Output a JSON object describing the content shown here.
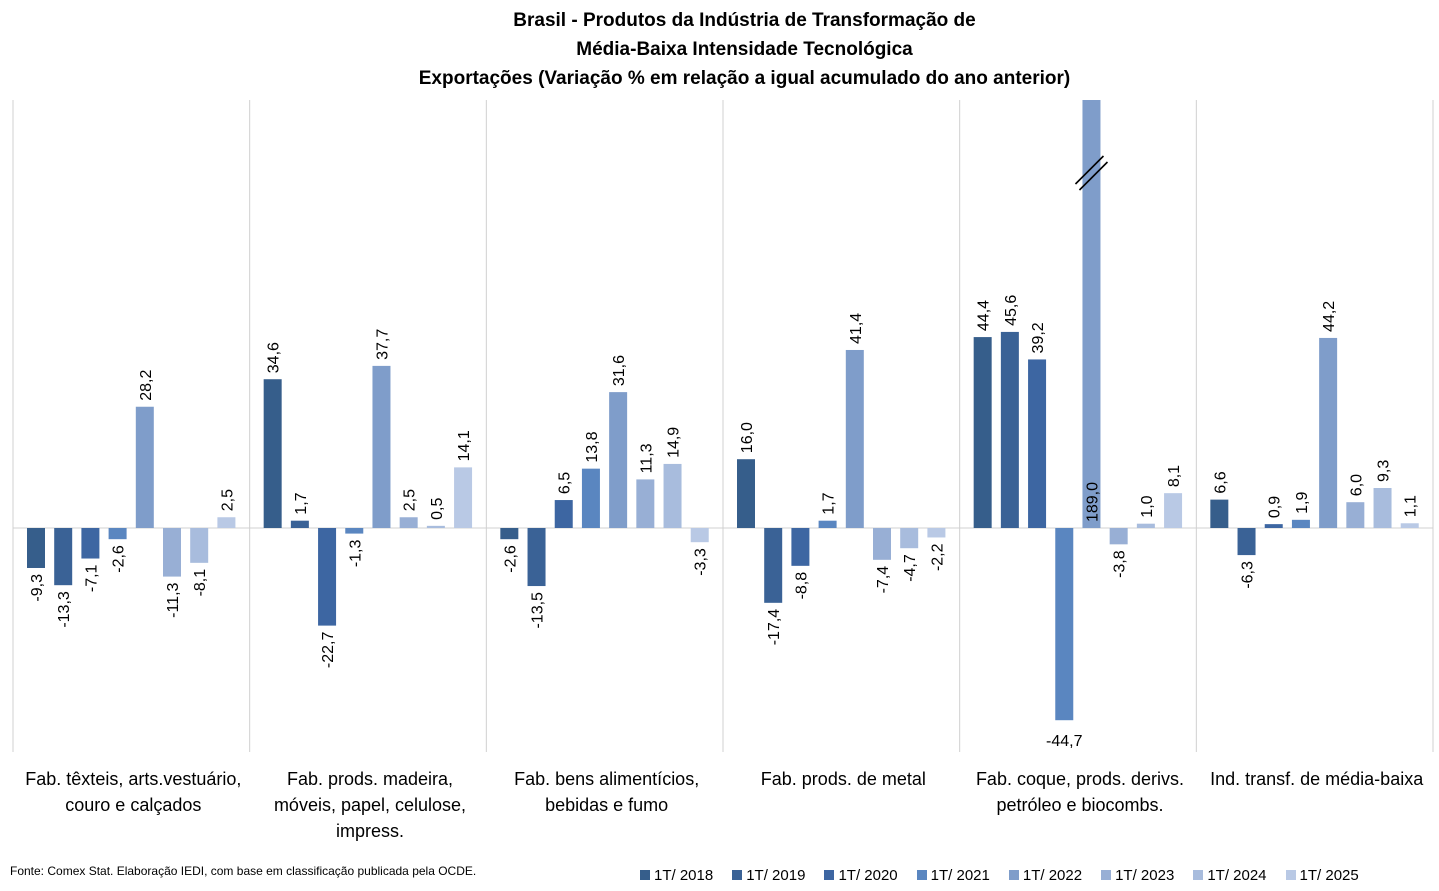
{
  "chart_data": {
    "type": "bar",
    "title": [
      "Brasil - Produtos da Indústria de Transformação de",
      "Média-Baixa Intensidade Tecnológica",
      "Exportações (Variação % em relação a igual acumulado do ano anterior)"
    ],
    "categories": [
      [
        "Fab. têxteis, arts.vestuário,",
        "couro e calçados"
      ],
      [
        "Fab. prods. madeira,",
        "móveis, papel, celulose,",
        "impress."
      ],
      [
        "Fab. bens alimentícios,",
        "bebidas e fumo"
      ],
      [
        "Fab. prods. de metal"
      ],
      [
        "Fab. coque, prods. derivs.",
        "petróleo e biocombs."
      ],
      [
        "Ind. transf. de média-baixa"
      ]
    ],
    "series": [
      {
        "name": "1T/ 2018",
        "color": "#365E8B",
        "values": [
          -9.3,
          34.6,
          -2.6,
          16.0,
          44.4,
          6.6
        ]
      },
      {
        "name": "1T/ 2019",
        "color": "#3A6296",
        "values": [
          -13.3,
          1.7,
          -13.5,
          -17.4,
          45.6,
          -6.3
        ]
      },
      {
        "name": "1T/ 2020",
        "color": "#3D66A2",
        "values": [
          -7.1,
          -22.7,
          6.5,
          -8.8,
          39.2,
          0.9
        ]
      },
      {
        "name": "1T/ 2021",
        "color": "#5A86C0",
        "values": [
          -2.6,
          -1.3,
          13.8,
          1.7,
          -44.7,
          1.9
        ]
      },
      {
        "name": "1T/ 2022",
        "color": "#7F9DCA",
        "values": [
          28.2,
          37.7,
          31.6,
          41.4,
          189.0,
          44.2
        ]
      },
      {
        "name": "1T/ 2023",
        "color": "#98AFD5",
        "values": [
          -11.3,
          2.5,
          11.3,
          -7.4,
          -3.8,
          6.0
        ]
      },
      {
        "name": "1T/ 2024",
        "color": "#A8BCDD",
        "values": [
          -8.1,
          0.5,
          14.9,
          -4.7,
          1.0,
          9.3
        ]
      },
      {
        "name": "1T/ 2025",
        "color": "#B9C9E5",
        "values": [
          2.5,
          14.1,
          -3.3,
          -2.2,
          8.1,
          1.1
        ]
      }
    ],
    "value_labels": [
      [
        "-9,3",
        "34,6",
        "-2,6",
        "16,0",
        "44,4",
        "6,6"
      ],
      [
        "-13,3",
        "1,7",
        "-13,5",
        "-17,4",
        "45,6",
        "-6,3"
      ],
      [
        "-7,1",
        "-22,7",
        "6,5",
        "-8,8",
        "39,2",
        "0,9"
      ],
      [
        "-2,6",
        "-1,3",
        "13,8",
        "1,7",
        "-44,7",
        "1,9"
      ],
      [
        "28,2",
        "37,7",
        "31,6",
        "41,4",
        "189,0",
        "44,2"
      ],
      [
        "-11,3",
        "2,5",
        "11,3",
        "-7,4",
        "-3,8",
        "6,0"
      ],
      [
        "-8,1",
        "0,5",
        "14,9",
        "-4,7",
        "1,0",
        "9,3"
      ],
      [
        "2,5",
        "14,1",
        "-3,3",
        "-2,2",
        "8,1",
        "1,1"
      ]
    ],
    "axis_break": {
      "series": 4,
      "category": 4
    },
    "ylim": [
      -50,
      100
    ],
    "xlabel": "",
    "ylabel": "",
    "grid": false,
    "legend_position": "bottom-right"
  },
  "source": "Fonte: Comex Stat. Elaboração IEDI, com base em classificação publicada pela OCDE."
}
